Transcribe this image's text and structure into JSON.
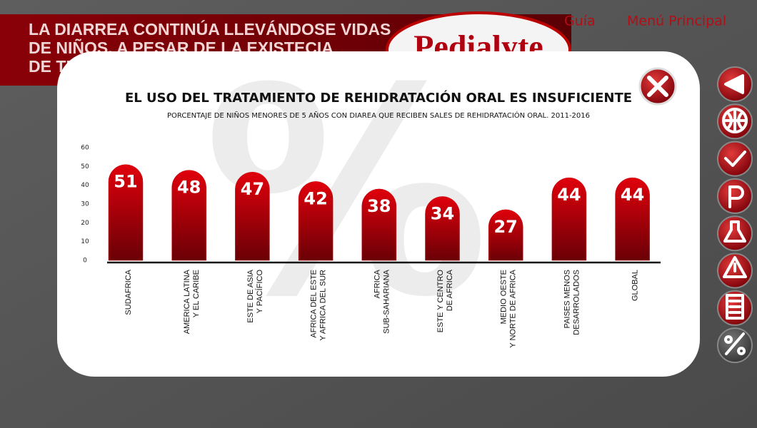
{
  "header": {
    "headline": [
      "LA DIARREA CONTINÚA LLEVÁNDOSE VIDAS",
      "DE NIÑOS, A PESAR DE LA EXISTECIA",
      "DE TR"
    ],
    "logo": "Pedialyte",
    "nav": [
      "Guía",
      "Menú Principal"
    ]
  },
  "modal": {
    "watermark": "%"
  },
  "chart_data": {
    "type": "bar",
    "title": "EL USO DEL TRATAMIENTO DE REHIDRATACIÓN ORAL ES INSUFICIENTE",
    "subtitle": "PORCENTAJE DE NIÑOS MENORES DE 5 AÑOS CON DIAREA QUE RECIBEN SALES DE REHIDRATACIÓN ORAL. 2011-2016",
    "categories": [
      "SUDAFRICA",
      "AMERICA LATINA\nY EL CARIBE",
      "ESTE DE ASIA\nY PACÍFICO",
      "AFRICA DEL ESTE\nY AFRICA DEL SUR",
      "AFRICA\nSUB-SAHARIANA",
      "ESTE Y CENTRO\nDE AFRICA",
      "MEDIO OESTE\nY NORTE DE AFRICA",
      "PAISES MENOS\nDESARROLADOS",
      "GLOBAL"
    ],
    "values": [
      51,
      48,
      47,
      42,
      38,
      34,
      27,
      44,
      44
    ],
    "color": "#c4000a",
    "ylim": [
      0,
      60
    ],
    "yticks": [
      0,
      10,
      20,
      30,
      40,
      50,
      60
    ],
    "grid": false
  }
}
